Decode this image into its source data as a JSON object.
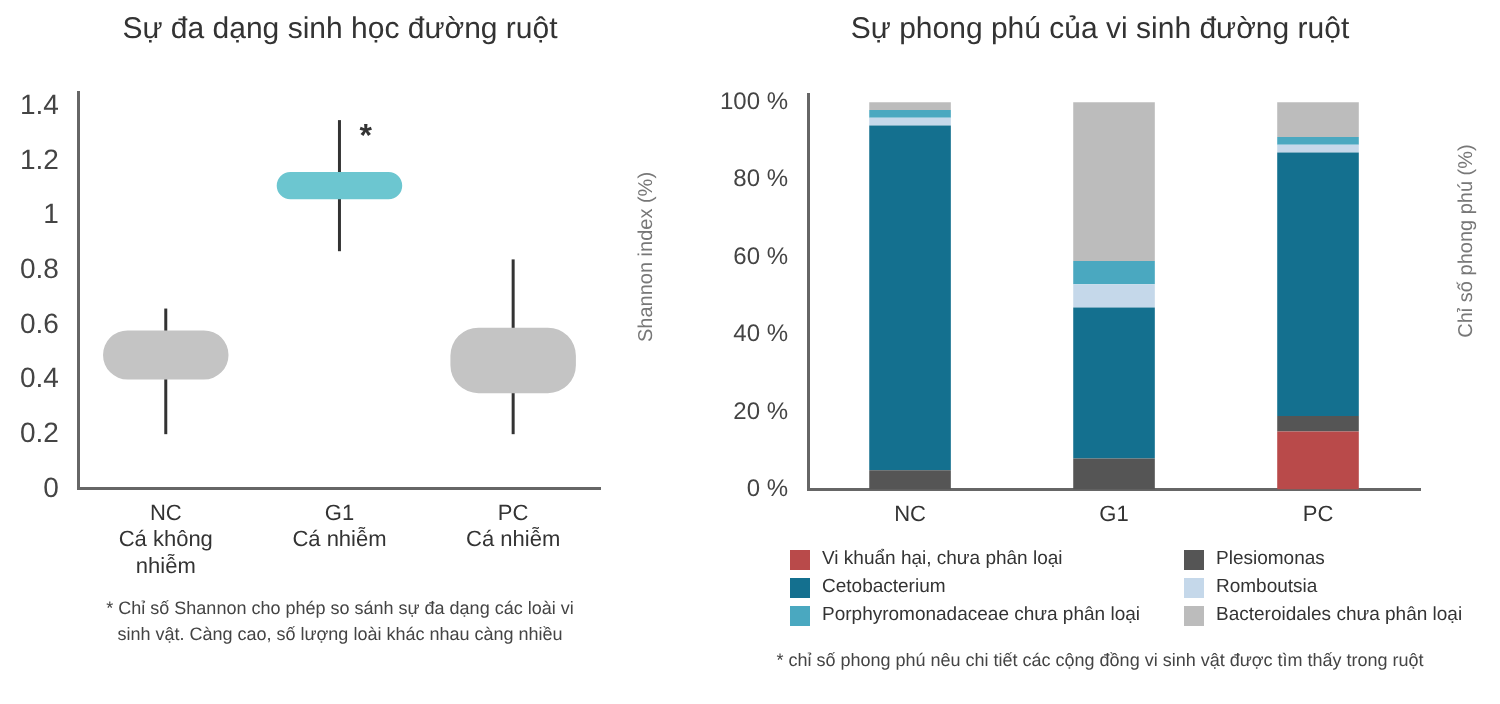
{
  "chart_data": [
    {
      "type": "bar",
      "title": "Sự đa dạng sinh học đường ruột",
      "ylabel": "Shannon index (%)",
      "categories": [
        "NC\nCá không\nnhiễm",
        "G1\nCá nhiễm",
        "PC\nCá nhiễm"
      ],
      "values": [
        0.18,
        0.1,
        0.24
      ],
      "base": [
        0.4,
        1.06,
        0.35
      ],
      "colors": [
        "#c4c4c4",
        "#6cc6d0",
        "#c4c4c4"
      ],
      "errors": [
        [
          0.2,
          0.66
        ],
        [
          0.87,
          1.35
        ],
        [
          0.2,
          0.84
        ]
      ],
      "ylim": [
        0,
        1.45
      ],
      "yticks": [
        0,
        0.2,
        0.4,
        0.6,
        0.8,
        1,
        1.2,
        1.4
      ],
      "grid": false,
      "legend": false,
      "annotations": [
        {
          "text": "*",
          "x": "G1\nCá nhiễm",
          "y": 1.3
        },
        "* Chỉ số Shannon cho phép so sánh sự đa dạng các loài vi sinh vật. Càng cao, số lượng loài khác nhau càng nhiều"
      ]
    },
    {
      "type": "bar",
      "title": "Sự phong phú của vi sinh đường ruột",
      "ylabel": "Chỉ số phong phú (%)",
      "categories": [
        "NC",
        "G1",
        "PC"
      ],
      "stacked": true,
      "series": [
        {
          "name": "Vi khuẩn hại, chưa phân loại",
          "color": "#b94a4a",
          "values": [
            null,
            null,
            15
          ]
        },
        {
          "name": "Plesiomonas",
          "color": "#555555",
          "values": [
            5,
            8,
            4
          ]
        },
        {
          "name": "Cetobacterium",
          "color": "#14708f",
          "values": [
            89,
            39,
            68
          ]
        },
        {
          "name": "Romboutsia",
          "color": "#c5d8ea",
          "values": [
            2,
            6,
            2
          ]
        },
        {
          "name": "Porphyromonadaceae chưa phân loại",
          "color": "#4aa8c0",
          "values": [
            2,
            6,
            2
          ]
        },
        {
          "name": "Bacteroidales chưa phân loại",
          "color": "#bcbcbc",
          "values": [
            2,
            41,
            9
          ]
        }
      ],
      "ylim": [
        0,
        102
      ],
      "yticks": [
        {
          "value": 0,
          "label": "0 %"
        },
        {
          "value": 20,
          "label": "20 %"
        },
        {
          "value": 40,
          "label": "40 %"
        },
        {
          "value": 60,
          "label": "60 %"
        },
        {
          "value": 80,
          "label": "80 %"
        },
        {
          "value": 100,
          "label": "100 %"
        }
      ],
      "grid": false,
      "legend": "bottom",
      "annotations": [
        "* chỉ số phong phú nêu chi tiết các cộng đồng vi sinh vật được tìm thấy trong ruột"
      ]
    }
  ]
}
